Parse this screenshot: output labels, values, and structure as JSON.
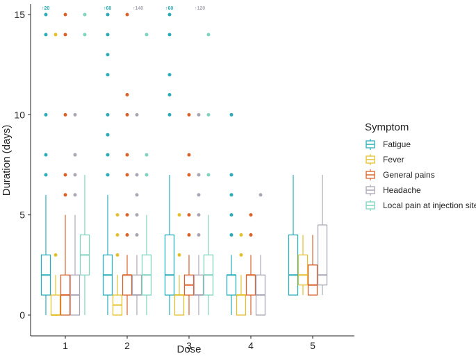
{
  "chart_data": {
    "type": "boxplot",
    "title": "",
    "xlabel": "Dose",
    "ylabel": "Duration (days)",
    "ylim": [
      -0.5,
      15.2
    ],
    "yticks": [
      0,
      5,
      10,
      15
    ],
    "ytick_labels": [
      "0",
      "5",
      "10",
      "15"
    ],
    "categories": [
      "1",
      "2",
      "3",
      "4",
      "5"
    ],
    "legend": {
      "title": "Symptom",
      "position": "right",
      "entries": [
        "Fatigue",
        "Fever",
        "General pains",
        "Headache",
        "Local pain at injection site"
      ]
    },
    "series": [
      {
        "name": "Fatigue",
        "color": "#2AACB8",
        "boxes": [
          {
            "dose": "1",
            "whisker_low": 0,
            "q1": 1,
            "median": 2,
            "q3": 3,
            "whisker_high": 6,
            "outliers": [
              7,
              8,
              10,
              14,
              15
            ],
            "overflow": "↑20"
          },
          {
            "dose": "2",
            "whisker_low": 0,
            "q1": 1,
            "median": 2,
            "q3": 3,
            "whisker_high": 6,
            "outliers": [
              7,
              8,
              9,
              10,
              12,
              13,
              14,
              15
            ],
            "overflow": "↑60"
          },
          {
            "dose": "3",
            "whisker_low": 0,
            "q1": 1,
            "median": 2,
            "q3": 4,
            "whisker_high": 7,
            "outliers": [
              10,
              11,
              12,
              14,
              15
            ],
            "overflow": "↑60"
          },
          {
            "dose": "4",
            "whisker_low": 0,
            "q1": 1,
            "median": 2,
            "q3": 2,
            "whisker_high": 3,
            "outliers": [
              4,
              5,
              6,
              7,
              10
            ],
            "overflow": ""
          },
          {
            "dose": "5",
            "whisker_low": 1,
            "q1": 1,
            "median": 2,
            "q3": 4,
            "whisker_high": 7,
            "outliers": [],
            "overflow": ""
          }
        ]
      },
      {
        "name": "Fever",
        "color": "#E3C02C",
        "boxes": [
          {
            "dose": "1",
            "whisker_low": 0,
            "q1": 0,
            "median": 0,
            "q3": 1,
            "whisker_high": 2,
            "outliers": [
              3,
              14
            ],
            "overflow": ""
          },
          {
            "dose": "2",
            "whisker_low": 0,
            "q1": 0,
            "median": 0.5,
            "q3": 1,
            "whisker_high": 2,
            "outliers": [
              3,
              4,
              5
            ],
            "overflow": ""
          },
          {
            "dose": "3",
            "whisker_low": 0,
            "q1": 0,
            "median": 1,
            "q3": 1,
            "whisker_high": 2,
            "outliers": [
              3,
              5
            ],
            "overflow": ""
          },
          {
            "dose": "4",
            "whisker_low": 0,
            "q1": 0,
            "median": 1,
            "q3": 1,
            "whisker_high": 2,
            "outliers": [
              3,
              4
            ],
            "overflow": ""
          },
          {
            "dose": "5",
            "whisker_low": 1,
            "q1": 1.5,
            "median": 2,
            "q3": 3,
            "whisker_high": 4,
            "outliers": [],
            "overflow": ""
          }
        ]
      },
      {
        "name": "General pains",
        "color": "#D9622B",
        "boxes": [
          {
            "dose": "1",
            "whisker_low": 0,
            "q1": 0,
            "median": 1,
            "q3": 2,
            "whisker_high": 5,
            "outliers": [
              6,
              7,
              10,
              14,
              15
            ],
            "overflow": ""
          },
          {
            "dose": "2",
            "whisker_low": 0,
            "q1": 1,
            "median": 2,
            "q3": 2,
            "whisker_high": 3,
            "outliers": [
              4,
              5,
              7,
              8,
              10,
              11,
              15
            ],
            "overflow": ""
          },
          {
            "dose": "3",
            "whisker_low": 0,
            "q1": 1,
            "median": 1.5,
            "q3": 2,
            "whisker_high": 3,
            "outliers": [
              4,
              5,
              7,
              8,
              10
            ],
            "overflow": ""
          },
          {
            "dose": "4",
            "whisker_low": 0,
            "q1": 1,
            "median": 2,
            "q3": 2,
            "whisker_high": 3,
            "outliers": [
              4,
              5
            ],
            "overflow": ""
          },
          {
            "dose": "5",
            "whisker_low": 1,
            "q1": 1,
            "median": 1.5,
            "q3": 2.5,
            "whisker_high": 4,
            "outliers": [],
            "overflow": ""
          }
        ]
      },
      {
        "name": "Headache",
        "color": "#AAA6B3",
        "boxes": [
          {
            "dose": "1",
            "whisker_low": 0,
            "q1": 0,
            "median": 1,
            "q3": 2,
            "whisker_high": 5,
            "outliers": [
              6,
              7,
              8,
              10
            ],
            "overflow": ""
          },
          {
            "dose": "2",
            "whisker_low": 0,
            "q1": 1,
            "median": 1,
            "q3": 2,
            "whisker_high": 3,
            "outliers": [
              4,
              5,
              6,
              7,
              10
            ],
            "overflow": "↑140"
          },
          {
            "dose": "3",
            "whisker_low": 0,
            "q1": 1,
            "median": 1,
            "q3": 2,
            "whisker_high": 3,
            "outliers": [
              4,
              5,
              6,
              7,
              10
            ],
            "overflow": "↑120"
          },
          {
            "dose": "4",
            "whisker_low": 0,
            "q1": 0,
            "median": 1,
            "q3": 2,
            "whisker_high": 3,
            "outliers": [
              6
            ],
            "overflow": ""
          },
          {
            "dose": "5",
            "whisker_low": 1,
            "q1": 1.5,
            "median": 2,
            "q3": 4.5,
            "whisker_high": 7,
            "outliers": [],
            "overflow": ""
          }
        ]
      },
      {
        "name": "Local pain at injection site",
        "color": "#7FD3BF",
        "boxes": [
          {
            "dose": "1",
            "whisker_low": 0,
            "q1": 2,
            "median": 3,
            "q3": 4,
            "whisker_high": 7,
            "outliers": [
              14,
              15
            ],
            "overflow": ""
          },
          {
            "dose": "2",
            "whisker_low": 0,
            "q1": 1,
            "median": 2,
            "q3": 3,
            "whisker_high": 5,
            "outliers": [
              7,
              8,
              14
            ],
            "overflow": ""
          },
          {
            "dose": "3",
            "whisker_low": 0,
            "q1": 1,
            "median": 2,
            "q3": 3,
            "whisker_high": 5,
            "outliers": [
              7,
              10,
              14
            ],
            "overflow": ""
          },
          null,
          null
        ]
      }
    ]
  }
}
